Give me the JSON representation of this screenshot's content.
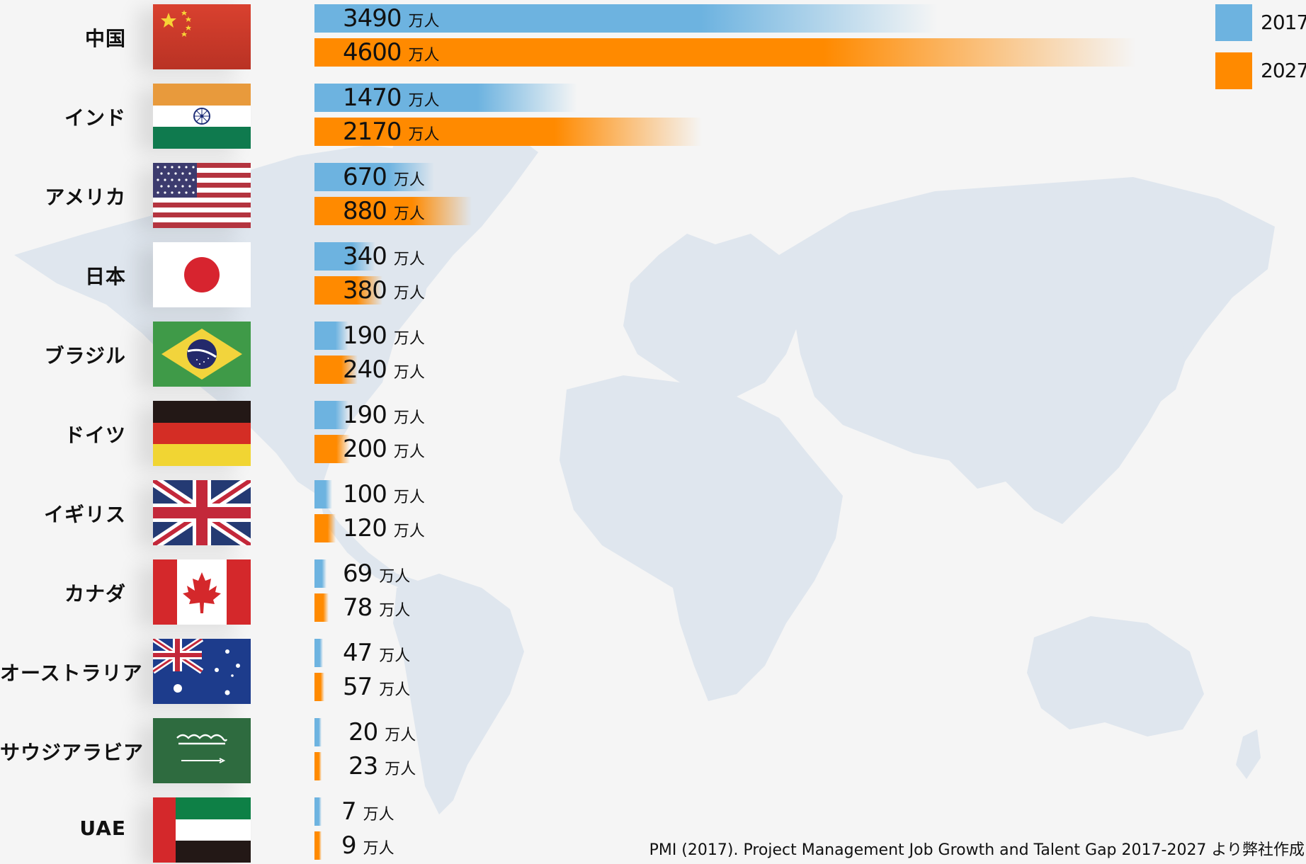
{
  "chart_data": {
    "type": "bar",
    "orientation": "horizontal",
    "categories": [
      "中国",
      "インド",
      "アメリカ",
      "日本",
      "ブラジル",
      "ドイツ",
      "イギリス",
      "カナダ",
      "オーストラリア",
      "サウジアラビア",
      "UAE"
    ],
    "flags": [
      "china-flag",
      "india-flag",
      "usa-flag",
      "japan-flag",
      "brazil-flag",
      "germany-flag",
      "uk-flag",
      "canada-flag",
      "australia-flag",
      "saudi-arabia-flag",
      "uae-flag"
    ],
    "series": [
      {
        "name": "2017",
        "color": "#6db3e0",
        "values": [
          3490,
          1470,
          670,
          340,
          190,
          190,
          100,
          69,
          47,
          20,
          7
        ]
      },
      {
        "name": "2027",
        "color": "#ff8a00",
        "values": [
          4600,
          2170,
          880,
          380,
          240,
          200,
          120,
          78,
          57,
          23,
          9
        ]
      }
    ],
    "unit": "万人",
    "legend_position": "top-right",
    "grid": false,
    "background": "world-map",
    "source": "PMI (2017). Project Management Job Growth and Talent Gap 2017-2027 より弊社作成"
  }
}
